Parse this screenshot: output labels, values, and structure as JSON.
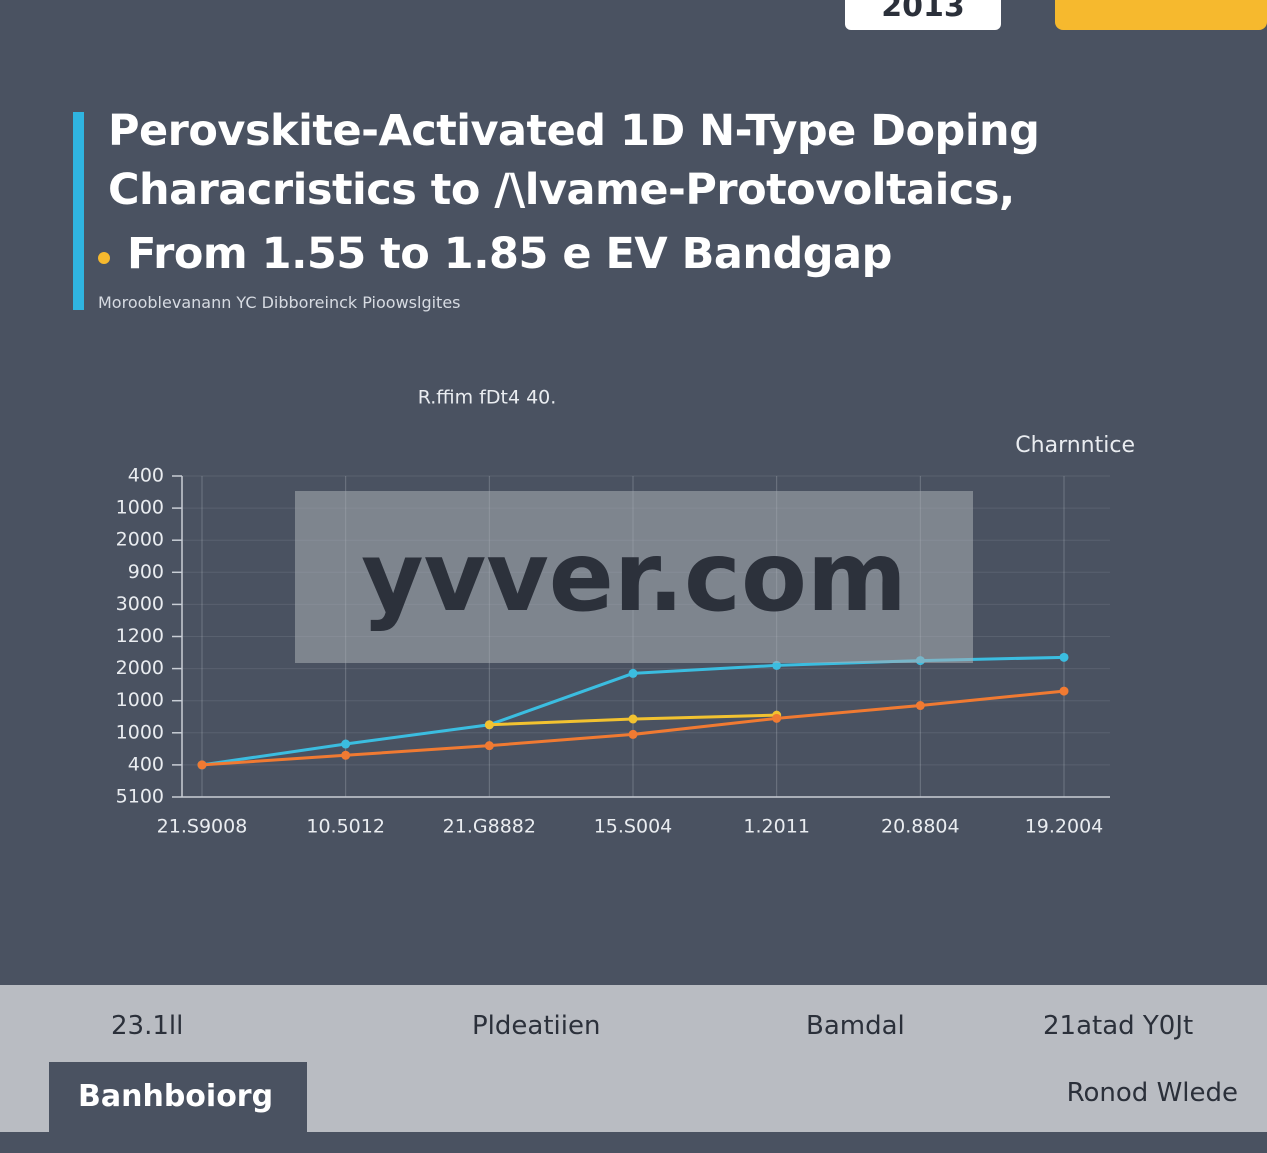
{
  "header": {
    "badge": "2013",
    "title_lines": [
      "Perovskite-Activated 1D N-Type Doping",
      "Characristics to /\\lvame-Protovoltaics,",
      "From 1.55 to 1.85 e EV Bandgap"
    ],
    "subtitle": "Morooblevanann YC Dibboreinck Pioowslgites"
  },
  "chart_data": {
    "type": "line",
    "title": "R.ffim fDt4 40.",
    "legend_title": "Charnntice",
    "categories": [
      "21.S9008",
      "10.5012",
      "21.G8882",
      "15.S004",
      "1.2011",
      "20.8804",
      "19.2004"
    ],
    "series": [
      {
        "name": null,
        "color": "#3bbde0",
        "values": [
          1.0,
          1.65,
          2.25,
          3.85,
          4.1,
          4.25,
          4.35
        ]
      },
      {
        "name": null,
        "color": "#f2c230",
        "values": [
          null,
          null,
          2.25,
          2.43,
          2.55,
          null,
          null
        ]
      },
      {
        "name": null,
        "color": "#f07a32",
        "values": [
          1.0,
          1.3,
          1.6,
          1.95,
          2.45,
          2.85,
          3.3
        ]
      }
    ],
    "ylim": [
      0,
      10
    ],
    "yticks": [
      {
        "value": 0,
        "label": "5100"
      },
      {
        "value": 1,
        "label": "400"
      },
      {
        "value": 2,
        "label": "1000"
      },
      {
        "value": 3,
        "label": "1000"
      },
      {
        "value": 4,
        "label": "2000"
      },
      {
        "value": 5,
        "label": "1200"
      },
      {
        "value": 6,
        "label": "3000"
      },
      {
        "value": 7,
        "label": "900"
      },
      {
        "value": 8,
        "label": "2000"
      },
      {
        "value": 9,
        "label": "1000"
      },
      {
        "value": 10,
        "label": "400"
      }
    ],
    "grid": true
  },
  "watermark": "yvver.com",
  "footer": {
    "items": [
      "23.1ll",
      "Pldeatiien",
      "Bamdal",
      "21atad Y0Jt"
    ],
    "tab": "Banhboiorg",
    "right": "Ronod Wlede"
  }
}
